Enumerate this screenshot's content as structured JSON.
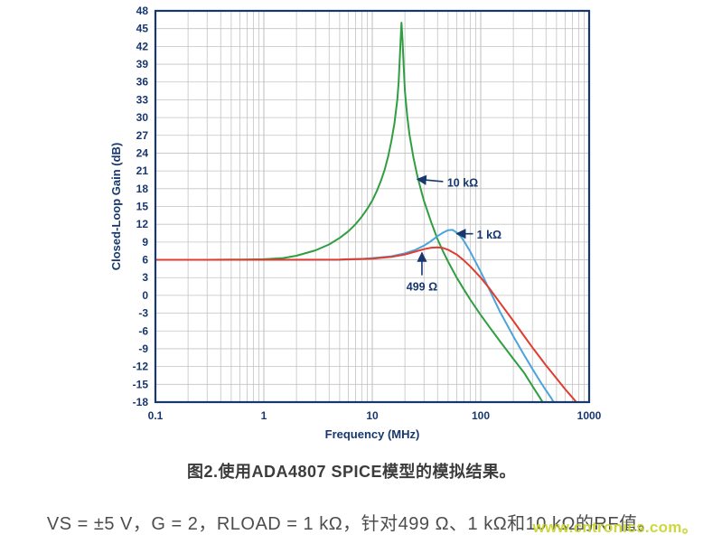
{
  "chart_data": {
    "type": "line",
    "title": "",
    "xlabel": "Frequency (MHz)",
    "ylabel": "Closed-Loop Gain (dB)",
    "xscale": "log",
    "xlim": [
      0.1,
      1000
    ],
    "ylim": [
      -18,
      48
    ],
    "ytick_step": 3,
    "xticks": [
      0.1,
      1,
      10,
      100,
      1000
    ],
    "xtick_labels": [
      "0.1",
      "1",
      "10",
      "100",
      "1000"
    ],
    "grid": true,
    "legend_position": "annotations-on-plot",
    "axis_color": "#17376e",
    "grid_color": "#c3c3c3",
    "series": [
      {
        "name": "10 kΩ",
        "color": "#2f9e41",
        "points": [
          [
            0.1,
            6
          ],
          [
            0.3,
            6
          ],
          [
            0.6,
            6.05
          ],
          [
            1,
            6.1
          ],
          [
            1.5,
            6.3
          ],
          [
            2,
            6.7
          ],
          [
            3,
            7.6
          ],
          [
            4,
            8.6
          ],
          [
            5,
            9.7
          ],
          [
            6,
            10.8
          ],
          [
            7,
            12
          ],
          [
            8,
            13.3
          ],
          [
            9,
            14.6
          ],
          [
            10,
            16
          ],
          [
            11,
            17.6
          ],
          [
            12,
            19.3
          ],
          [
            13,
            21.2
          ],
          [
            14,
            23.4
          ],
          [
            15,
            26
          ],
          [
            16,
            29
          ],
          [
            17,
            33
          ],
          [
            17.5,
            36
          ],
          [
            18,
            40.5
          ],
          [
            18.3,
            43.5
          ],
          [
            18.6,
            46
          ],
          [
            19,
            43
          ],
          [
            19.5,
            38.5
          ],
          [
            20,
            34.5
          ],
          [
            21,
            30.2
          ],
          [
            22,
            27.2
          ],
          [
            24,
            23.2
          ],
          [
            26,
            20.2
          ],
          [
            28,
            17.9
          ],
          [
            30,
            15.9
          ],
          [
            35,
            12.3
          ],
          [
            40,
            9.5
          ],
          [
            45,
            7.4
          ],
          [
            50,
            5.7
          ],
          [
            60,
            3
          ],
          [
            70,
            1
          ],
          [
            80,
            -0.7
          ],
          [
            100,
            -3.3
          ],
          [
            120,
            -5.3
          ],
          [
            150,
            -7.7
          ],
          [
            200,
            -10.7
          ],
          [
            250,
            -13
          ],
          [
            300,
            -15.3
          ],
          [
            350,
            -17.2
          ],
          [
            400,
            -18.9
          ]
        ]
      },
      {
        "name": "1 kΩ",
        "color": "#4aa4dc",
        "points": [
          [
            0.1,
            6
          ],
          [
            1,
            6
          ],
          [
            5,
            6
          ],
          [
            8,
            6.15
          ],
          [
            10,
            6.3
          ],
          [
            15,
            6.6
          ],
          [
            20,
            7.1
          ],
          [
            25,
            7.7
          ],
          [
            30,
            8.4
          ],
          [
            35,
            9.2
          ],
          [
            40,
            10
          ],
          [
            45,
            10.6
          ],
          [
            50,
            11
          ],
          [
            55,
            11.05
          ],
          [
            60,
            10.6
          ],
          [
            65,
            10
          ],
          [
            70,
            9.2
          ],
          [
            80,
            7.4
          ],
          [
            90,
            5.6
          ],
          [
            100,
            4
          ],
          [
            120,
            1
          ],
          [
            150,
            -2.7
          ],
          [
            200,
            -6.9
          ],
          [
            250,
            -10
          ],
          [
            300,
            -12.4
          ],
          [
            350,
            -14.4
          ],
          [
            400,
            -16
          ],
          [
            450,
            -17.4
          ],
          [
            500,
            -18.8
          ]
        ]
      },
      {
        "name": "499 Ω",
        "color": "#e23b30",
        "points": [
          [
            0.1,
            6
          ],
          [
            1,
            6
          ],
          [
            5,
            6.05
          ],
          [
            10,
            6.2
          ],
          [
            15,
            6.5
          ],
          [
            20,
            6.9
          ],
          [
            25,
            7.4
          ],
          [
            30,
            7.8
          ],
          [
            35,
            8.05
          ],
          [
            40,
            8.1
          ],
          [
            45,
            8
          ],
          [
            50,
            7.7
          ],
          [
            60,
            6.9
          ],
          [
            70,
            5.9
          ],
          [
            80,
            4.9
          ],
          [
            90,
            3.9
          ],
          [
            100,
            3
          ],
          [
            120,
            1.2
          ],
          [
            150,
            -1.2
          ],
          [
            200,
            -4.3
          ],
          [
            250,
            -6.8
          ],
          [
            300,
            -8.8
          ],
          [
            350,
            -10.4
          ],
          [
            400,
            -11.8
          ],
          [
            500,
            -14
          ],
          [
            600,
            -15.8
          ],
          [
            700,
            -17.2
          ],
          [
            800,
            -18.5
          ]
        ]
      }
    ],
    "annotations": [
      {
        "label": "10 kΩ",
        "tip": [
          26,
          19.6
        ],
        "tail": [
          45,
          19.2
        ],
        "text_at": [
          49,
          19.0
        ],
        "anchor": "start"
      },
      {
        "label": "1 kΩ",
        "tip": [
          60,
          10.4
        ],
        "tail": [
          85,
          10.4
        ],
        "text_at": [
          92,
          10.2
        ],
        "anchor": "start"
      },
      {
        "label": "499 Ω",
        "tip": [
          28.7,
          7.2
        ],
        "tail": [
          28.7,
          3.4
        ],
        "text_at": [
          28.7,
          1.4
        ],
        "anchor": "middle"
      }
    ]
  },
  "caption": "图2.使用ADA4807 SPICE模型的模拟结果。",
  "subcaption": "VS = ±5 V，G = 2，RLOAD = 1 kΩ，针对499 Ω、1 kΩ和10 kΩ的RF值。",
  "watermark": "www.cntronics.com。"
}
